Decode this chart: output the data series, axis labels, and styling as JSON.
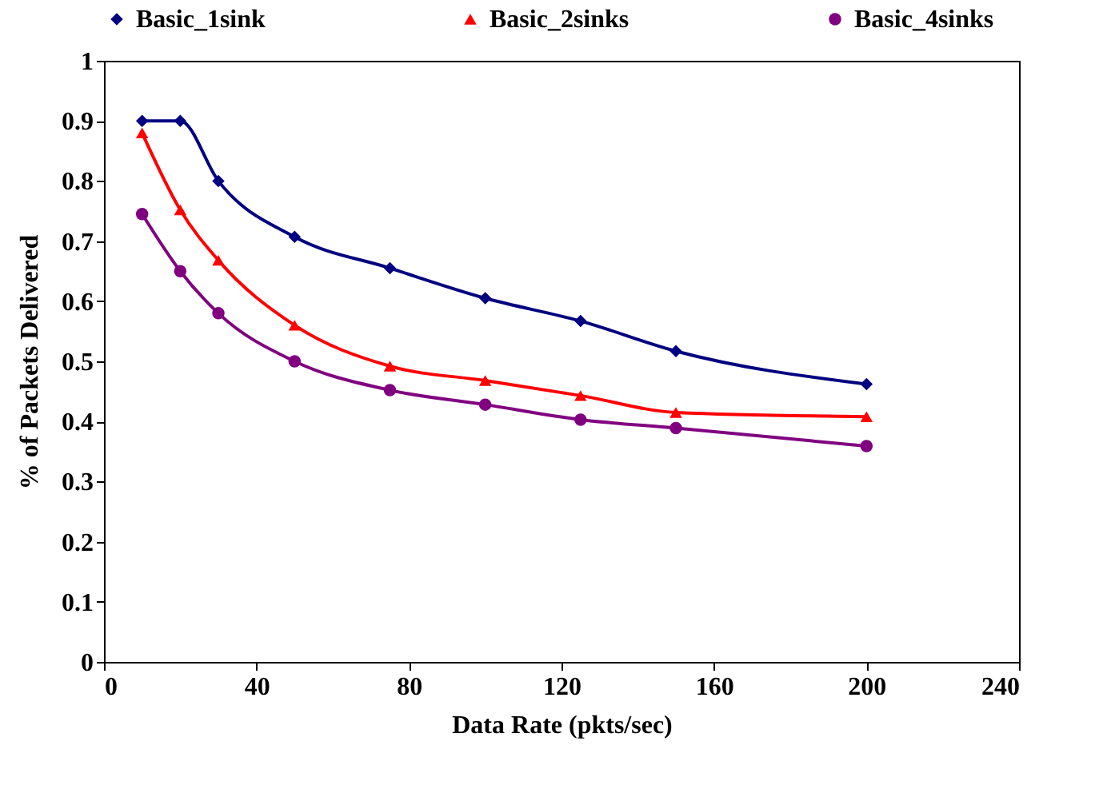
{
  "chart_data": {
    "type": "line",
    "xlabel": "Data Rate (pkts/sec)",
    "ylabel": "% of Packets Delivered",
    "x": [
      10,
      20,
      30,
      50,
      75,
      100,
      125,
      150,
      200
    ],
    "series": [
      {
        "name": "Basic_1sink",
        "color": "#000080",
        "marker": "diamond",
        "values": [
          0.9,
          0.9,
          0.8,
          0.707,
          0.655,
          0.605,
          0.567,
          0.517,
          0.462
        ]
      },
      {
        "name": "Basic_2sinks",
        "color": "#ff0000",
        "marker": "triangle",
        "values": [
          0.88,
          0.752,
          0.668,
          0.56,
          0.492,
          0.468,
          0.443,
          0.415,
          0.408
        ]
      },
      {
        "name": "Basic_4sinks",
        "color": "#800080",
        "marker": "circle",
        "values": [
          0.745,
          0.65,
          0.58,
          0.5,
          0.452,
          0.428,
          0.403,
          0.389,
          0.359
        ]
      }
    ],
    "xlim": [
      0,
      240
    ],
    "xticks": [
      0,
      40,
      80,
      120,
      160,
      200,
      240
    ],
    "ylim": [
      0,
      1
    ],
    "yticks": [
      0,
      0.1,
      0.2,
      0.3,
      0.4,
      0.5,
      0.6,
      0.7,
      0.8,
      0.9,
      1
    ],
    "grid": false,
    "legend": "top"
  }
}
